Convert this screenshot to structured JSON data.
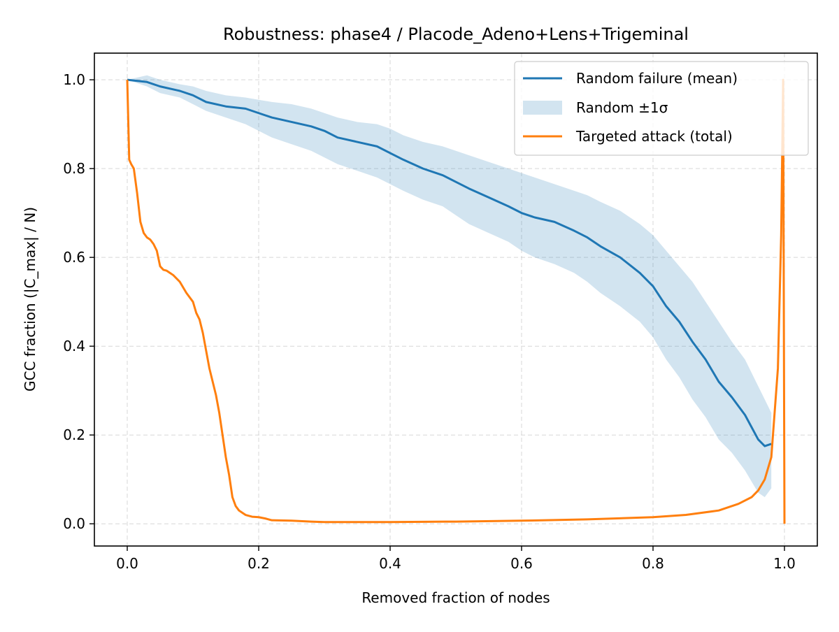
{
  "chart_data": {
    "type": "line",
    "title": "Robustness: phase4 / Placode_Adeno+Lens+Trigeminal",
    "xlabel": "Removed fraction of nodes",
    "ylabel": "GCC fraction (|C_max| / N)",
    "xlim": [
      -0.05,
      1.05
    ],
    "ylim": [
      -0.05,
      1.06
    ],
    "x_ticks": [
      "0.0",
      "0.2",
      "0.4",
      "0.6",
      "0.8",
      "1.0"
    ],
    "y_ticks": [
      "0.0",
      "0.2",
      "0.4",
      "0.6",
      "0.8",
      "1.0"
    ],
    "grid": true,
    "legend_position": "upper right",
    "series": [
      {
        "name": "Random failure (mean)",
        "color": "#1f77b4",
        "x": [
          0.0,
          0.03,
          0.05,
          0.08,
          0.1,
          0.12,
          0.15,
          0.18,
          0.2,
          0.22,
          0.25,
          0.28,
          0.3,
          0.32,
          0.35,
          0.38,
          0.4,
          0.42,
          0.45,
          0.48,
          0.5,
          0.52,
          0.55,
          0.58,
          0.6,
          0.62,
          0.65,
          0.68,
          0.7,
          0.72,
          0.75,
          0.78,
          0.8,
          0.82,
          0.84,
          0.86,
          0.88,
          0.9,
          0.92,
          0.94,
          0.96,
          0.97,
          0.98
        ],
        "y": [
          1.0,
          0.995,
          0.985,
          0.975,
          0.965,
          0.95,
          0.94,
          0.935,
          0.925,
          0.915,
          0.905,
          0.895,
          0.885,
          0.87,
          0.86,
          0.85,
          0.835,
          0.82,
          0.8,
          0.785,
          0.77,
          0.755,
          0.735,
          0.715,
          0.7,
          0.69,
          0.68,
          0.66,
          0.645,
          0.625,
          0.6,
          0.565,
          0.535,
          0.49,
          0.455,
          0.41,
          0.37,
          0.32,
          0.285,
          0.245,
          0.19,
          0.175,
          0.18
        ]
      },
      {
        "name": "Random ±1σ",
        "color": "#1f77b4",
        "fill_opacity": 0.2,
        "x": [
          0.0,
          0.03,
          0.05,
          0.08,
          0.1,
          0.12,
          0.15,
          0.18,
          0.2,
          0.22,
          0.25,
          0.28,
          0.3,
          0.32,
          0.35,
          0.38,
          0.4,
          0.42,
          0.45,
          0.48,
          0.5,
          0.52,
          0.55,
          0.58,
          0.6,
          0.62,
          0.65,
          0.68,
          0.7,
          0.72,
          0.75,
          0.78,
          0.8,
          0.82,
          0.84,
          0.86,
          0.88,
          0.9,
          0.92,
          0.94,
          0.96,
          0.97,
          0.98
        ],
        "upper": [
          1.0,
          1.01,
          1.0,
          0.99,
          0.985,
          0.975,
          0.965,
          0.96,
          0.955,
          0.95,
          0.945,
          0.935,
          0.925,
          0.915,
          0.905,
          0.9,
          0.89,
          0.875,
          0.86,
          0.85,
          0.84,
          0.83,
          0.815,
          0.8,
          0.79,
          0.78,
          0.765,
          0.75,
          0.74,
          0.725,
          0.705,
          0.675,
          0.65,
          0.615,
          0.58,
          0.545,
          0.5,
          0.455,
          0.41,
          0.37,
          0.31,
          0.28,
          0.25
        ],
        "lower": [
          1.0,
          0.985,
          0.97,
          0.96,
          0.945,
          0.93,
          0.915,
          0.9,
          0.885,
          0.87,
          0.855,
          0.84,
          0.825,
          0.81,
          0.795,
          0.78,
          0.765,
          0.75,
          0.73,
          0.715,
          0.695,
          0.675,
          0.655,
          0.635,
          0.615,
          0.6,
          0.585,
          0.565,
          0.545,
          0.52,
          0.49,
          0.455,
          0.42,
          0.37,
          0.33,
          0.28,
          0.24,
          0.19,
          0.16,
          0.12,
          0.07,
          0.06,
          0.08
        ]
      },
      {
        "name": "Targeted attack (total)",
        "color": "#ff7f0e",
        "x": [
          0.0,
          0.003,
          0.006,
          0.01,
          0.015,
          0.02,
          0.025,
          0.03,
          0.035,
          0.04,
          0.045,
          0.05,
          0.055,
          0.06,
          0.065,
          0.07,
          0.08,
          0.09,
          0.1,
          0.105,
          0.11,
          0.115,
          0.12,
          0.125,
          0.13,
          0.135,
          0.14,
          0.145,
          0.15,
          0.155,
          0.16,
          0.165,
          0.17,
          0.175,
          0.18,
          0.185,
          0.19,
          0.2,
          0.21,
          0.22,
          0.25,
          0.28,
          0.3,
          0.4,
          0.5,
          0.6,
          0.7,
          0.8,
          0.85,
          0.9,
          0.93,
          0.95,
          0.96,
          0.97,
          0.98,
          0.99,
          0.995,
          0.998,
          1.0
        ],
        "y": [
          1.0,
          0.82,
          0.81,
          0.8,
          0.745,
          0.68,
          0.655,
          0.645,
          0.64,
          0.63,
          0.615,
          0.58,
          0.572,
          0.57,
          0.565,
          0.56,
          0.545,
          0.52,
          0.5,
          0.475,
          0.46,
          0.43,
          0.39,
          0.35,
          0.32,
          0.29,
          0.25,
          0.2,
          0.15,
          0.11,
          0.06,
          0.04,
          0.03,
          0.025,
          0.02,
          0.018,
          0.016,
          0.015,
          0.012,
          0.008,
          0.007,
          0.005,
          0.004,
          0.004,
          0.005,
          0.007,
          0.01,
          0.015,
          0.02,
          0.03,
          0.045,
          0.06,
          0.075,
          0.1,
          0.15,
          0.35,
          0.65,
          1.0,
          0.0
        ]
      }
    ]
  }
}
